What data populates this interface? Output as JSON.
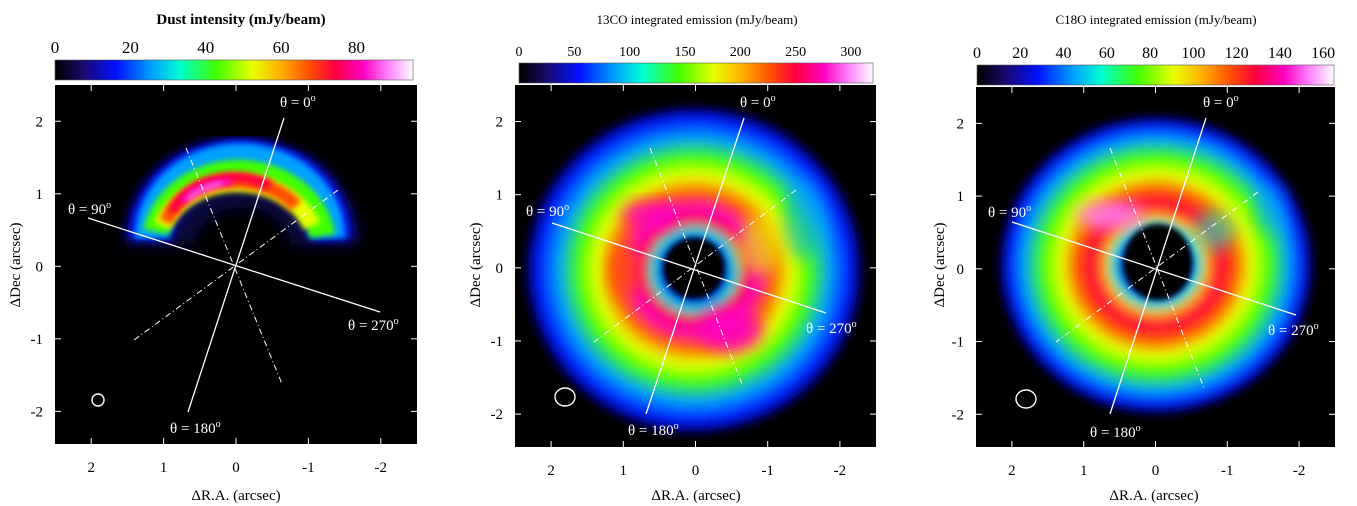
{
  "chart_data": [
    {
      "type": "heatmap",
      "title": "Dust intensity (mJy/beam)",
      "colorbar_ticks": [
        0,
        20,
        40,
        60,
        80
      ],
      "colorbar_range": [
        0,
        95
      ],
      "xlabel": "ΔR.A. (arcsec)",
      "ylabel": "ΔDec (arcsec)",
      "xlim": [
        2.5,
        -2.5
      ],
      "ylim": [
        -2.45,
        2.5
      ],
      "xticks": [
        "2",
        "1",
        "0",
        "-1",
        "-2"
      ],
      "yticks": [
        "2",
        "1",
        "0",
        "-1",
        "-2"
      ],
      "angle_labels": [
        "θ = 0",
        "θ = 90",
        "θ = 180",
        "θ = 270"
      ],
      "degree_sign": "o",
      "morphology": "asymmetric crescent (north), peak ~88 mJy/beam"
    },
    {
      "type": "heatmap",
      "title": "13CO integrated emission (mJy/beam)",
      "colorbar_ticks": [
        0,
        50,
        100,
        150,
        200,
        250,
        300
      ],
      "colorbar_range": [
        0,
        320
      ],
      "xlabel": "ΔR.A. (arcsec)",
      "ylabel": "ΔDec (arcsec)",
      "xlim": [
        2.5,
        -2.5
      ],
      "ylim": [
        -2.45,
        2.5
      ],
      "xticks": [
        "2",
        "1",
        "0",
        "-1",
        "-2"
      ],
      "yticks": [
        "2",
        "1",
        "0",
        "-1",
        "-2"
      ],
      "angle_labels": [
        "θ = 0",
        "θ = 90",
        "θ = 180",
        "θ = 270"
      ],
      "degree_sign": "o",
      "morphology": "ring with central cavity, peak ~300 mJy/beam"
    },
    {
      "type": "heatmap",
      "title": "C18O integrated emission (mJy/beam)",
      "colorbar_ticks": [
        0,
        20,
        40,
        60,
        80,
        100,
        120,
        140,
        160
      ],
      "colorbar_range": [
        0,
        165
      ],
      "xlabel": "ΔR.A. (arcsec)",
      "ylabel": "ΔDec (arcsec)",
      "xlim": [
        2.5,
        -2.5
      ],
      "ylim": [
        -2.45,
        2.5
      ],
      "xticks": [
        "2",
        "1",
        "0",
        "-1",
        "-2"
      ],
      "yticks": [
        "2",
        "1",
        "0",
        "-1",
        "-2"
      ],
      "angle_labels": [
        "θ = 0",
        "θ = 90",
        "θ = 180",
        "θ = 270"
      ],
      "degree_sign": "o",
      "morphology": "ring with central cavity, peak ~150 mJy/beam"
    }
  ],
  "colormap": [
    "#000000",
    "#1a0a6e",
    "#0010ff",
    "#00a0ff",
    "#00ffd0",
    "#40ff00",
    "#e8ff00",
    "#ffb000",
    "#ff5000",
    "#ff0040",
    "#ff00c0",
    "#ff80ff",
    "#ffffff"
  ]
}
